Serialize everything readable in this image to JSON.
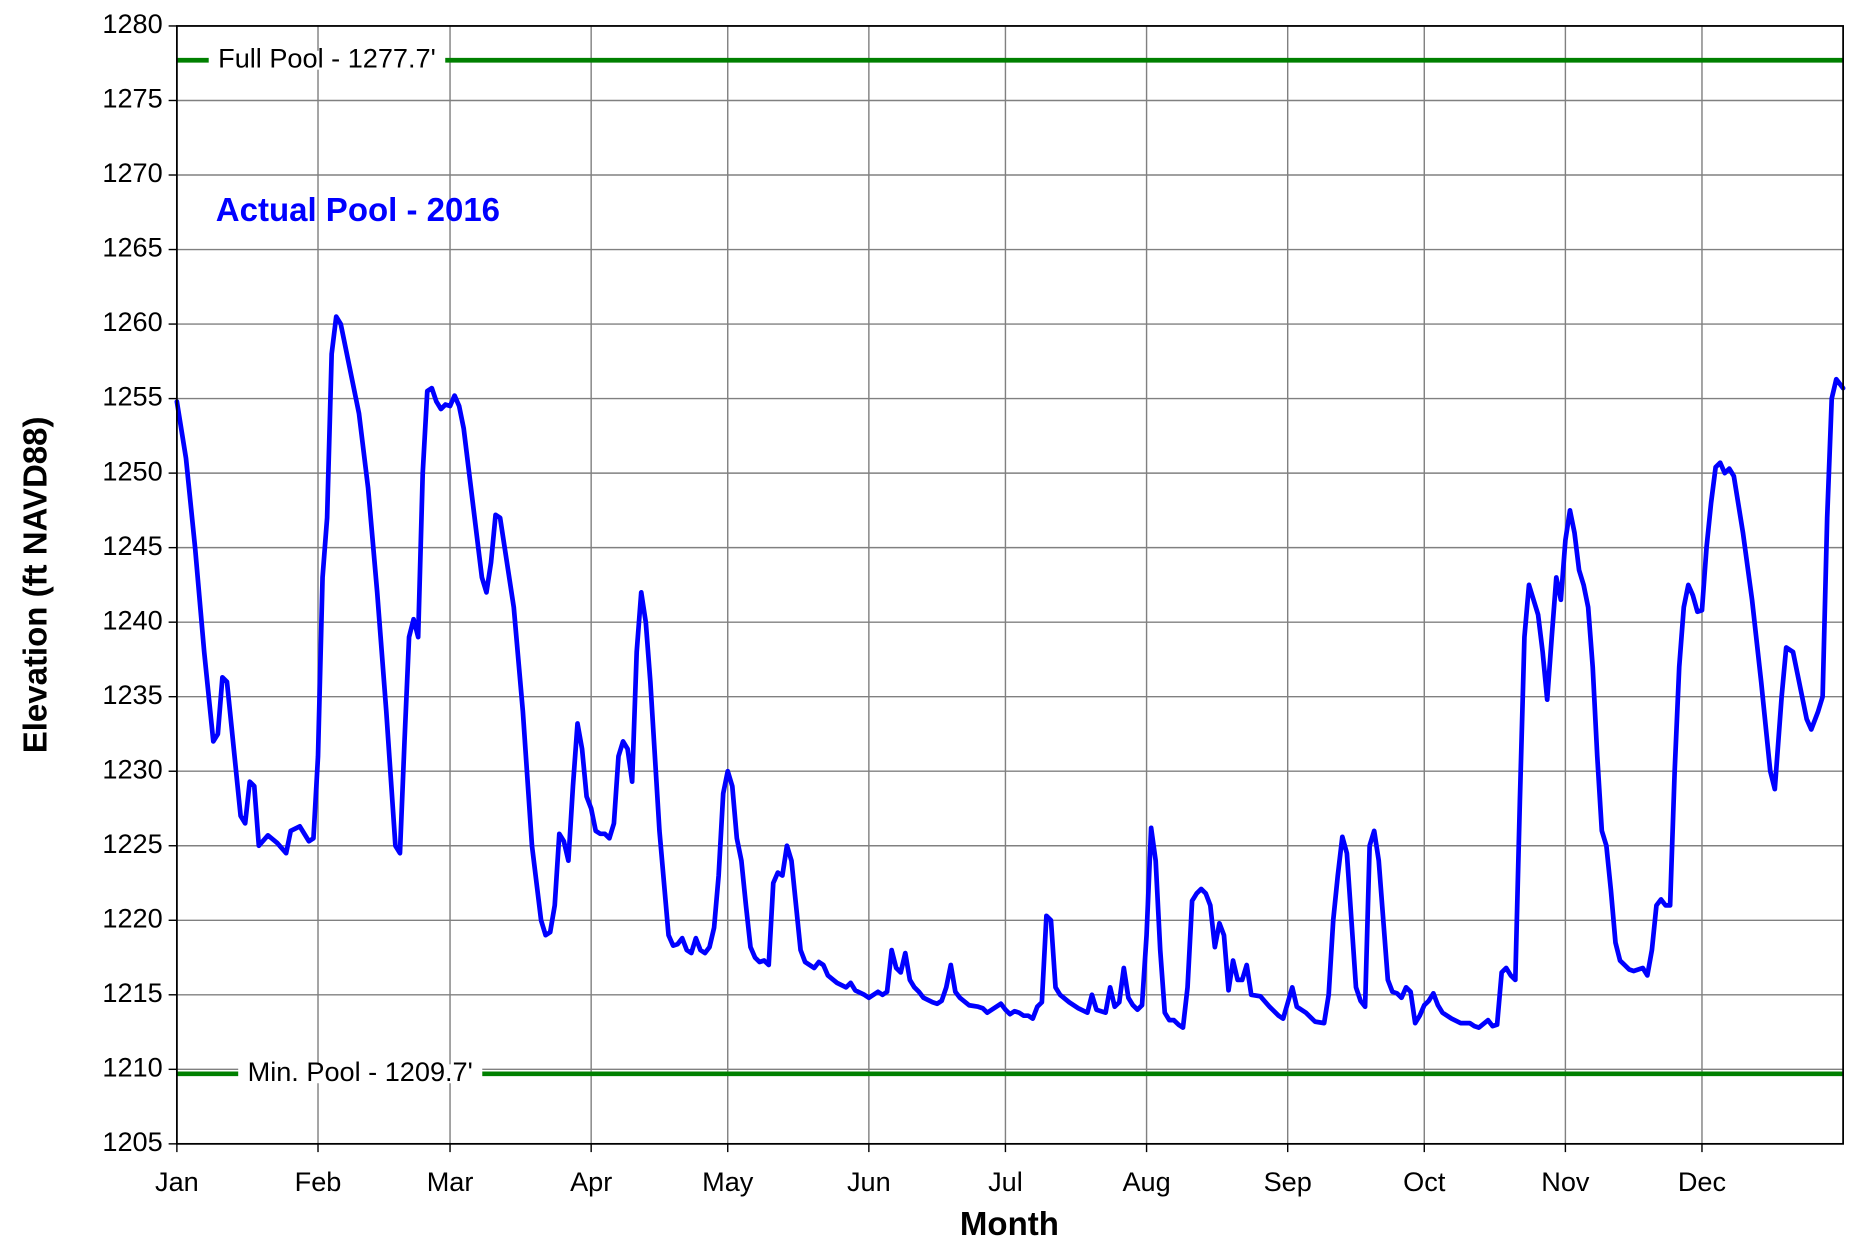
{
  "chart_data": {
    "type": "line",
    "xlabel": "Month",
    "ylabel": "Elevation (ft NAVD88)",
    "xlim": [
      0,
      366
    ],
    "xticks": [
      {
        "value": 0,
        "label": "Jan"
      },
      {
        "value": 31,
        "label": "Feb"
      },
      {
        "value": 60,
        "label": "Mar"
      },
      {
        "value": 91,
        "label": "Apr"
      },
      {
        "value": 121,
        "label": "May"
      },
      {
        "value": 152,
        "label": "Jun"
      },
      {
        "value": 182,
        "label": "Jul"
      },
      {
        "value": 213,
        "label": "Aug"
      },
      {
        "value": 244,
        "label": "Sep"
      },
      {
        "value": 274,
        "label": "Oct"
      },
      {
        "value": 305,
        "label": "Nov"
      },
      {
        "value": 335,
        "label": "Dec"
      }
    ],
    "ylim": [
      1205,
      1280
    ],
    "yticks": [
      1205,
      1210,
      1215,
      1220,
      1225,
      1230,
      1235,
      1240,
      1245,
      1250,
      1255,
      1260,
      1265,
      1270,
      1275,
      1280
    ],
    "grid": true,
    "reference_lines": [
      {
        "value": 1277.7,
        "label": "Full Pool - 1277.7'",
        "color": "#008000"
      },
      {
        "value": 1209.7,
        "label": "Min. Pool - 1209.7'",
        "color": "#008000"
      }
    ],
    "series": [
      {
        "name": "Actual Pool - 2016",
        "color": "#0000ff",
        "x": [
          0,
          2,
          4,
          6,
          8,
          9,
          10,
          11,
          12,
          14,
          15,
          16,
          17,
          18,
          20,
          22,
          24,
          25,
          27,
          29,
          30,
          31,
          32,
          33,
          34,
          35,
          36,
          38,
          40,
          42,
          44,
          46,
          48,
          49,
          50,
          51,
          52,
          53,
          54,
          55,
          56,
          57,
          58,
          59,
          60,
          61,
          62,
          63,
          65,
          67,
          68,
          69,
          70,
          71,
          72,
          74,
          76,
          78,
          80,
          81,
          82,
          83,
          84,
          85,
          86,
          87,
          88,
          89,
          90,
          91,
          92,
          93,
          94,
          95,
          96,
          97,
          98,
          99,
          100,
          101,
          102,
          103,
          104,
          106,
          108,
          109,
          110,
          111,
          112,
          113,
          114,
          115,
          116,
          117,
          118,
          119,
          120,
          121,
          122,
          123,
          124,
          125,
          126,
          127,
          128,
          129,
          130,
          131,
          132,
          133,
          134,
          135,
          136,
          137,
          138,
          140,
          141,
          142,
          143,
          145,
          147,
          148,
          149,
          151,
          152,
          153,
          154,
          155,
          156,
          157,
          158,
          159,
          160,
          161,
          162,
          163,
          164,
          166,
          167,
          168,
          169,
          170,
          171,
          172,
          174,
          176,
          177,
          178,
          179,
          181,
          182,
          183,
          184,
          185,
          186,
          187,
          188,
          189,
          190,
          191,
          192,
          193,
          194,
          196,
          198,
          200,
          201,
          202,
          204,
          205,
          206,
          207,
          208,
          209,
          210,
          211,
          212,
          213,
          214,
          215,
          216,
          217,
          218,
          219,
          220,
          221,
          222,
          223,
          224,
          225,
          226,
          227,
          228,
          229,
          230,
          231,
          232,
          233,
          234,
          235,
          236,
          238,
          240,
          242,
          243,
          245,
          246,
          248,
          250,
          252,
          253,
          254,
          255,
          256,
          257,
          258,
          259,
          260,
          261,
          262,
          263,
          264,
          265,
          266,
          267,
          268,
          269,
          270,
          271,
          272,
          273,
          274,
          275,
          276,
          277,
          278,
          280,
          282,
          284,
          285,
          286,
          288,
          289,
          290,
          291,
          292,
          293,
          294,
          295,
          296,
          297,
          298,
          299,
          300,
          301,
          302,
          303,
          304,
          305,
          306,
          307,
          308,
          309,
          310,
          311,
          312,
          313,
          314,
          315,
          316,
          317,
          318,
          319,
          320,
          322,
          323,
          324,
          325,
          326,
          327,
          328,
          329,
          330,
          331,
          332,
          333,
          334,
          335,
          336,
          337,
          338,
          339,
          340,
          341,
          342,
          344,
          346,
          348,
          350,
          351,
          352.5,
          353.5,
          355,
          356,
          358,
          359,
          360.5,
          361.5,
          362.5,
          363.5,
          364.5,
          366
        ],
        "values": [
          1254.8,
          1251,
          1245,
          1238,
          1232,
          1232.5,
          1236.3,
          1236,
          1233,
          1227,
          1226.5,
          1229.3,
          1229,
          1225,
          1225.7,
          1225.2,
          1224.5,
          1226,
          1226.3,
          1225.3,
          1225.5,
          1231,
          1243,
          1247,
          1258,
          1260.5,
          1260,
          1257,
          1254,
          1249,
          1242,
          1234,
          1225,
          1224.5,
          1232,
          1239,
          1240.2,
          1239,
          1250,
          1255.5,
          1255.7,
          1254.8,
          1254.3,
          1254.6,
          1254.5,
          1255.2,
          1254.5,
          1253,
          1248,
          1243,
          1242,
          1244,
          1247.2,
          1247,
          1245,
          1241,
          1234,
          1225,
          1220,
          1219,
          1219.2,
          1221,
          1225.8,
          1225.3,
          1224,
          1229,
          1233.2,
          1231.5,
          1228.3,
          1227.5,
          1226,
          1225.8,
          1225.8,
          1225.5,
          1226.5,
          1231,
          1232,
          1231.5,
          1229.3,
          1238,
          1242,
          1240,
          1236,
          1226,
          1219,
          1218.3,
          1218.4,
          1218.8,
          1218,
          1217.8,
          1218.8,
          1218,
          1217.8,
          1218.2,
          1219.5,
          1223,
          1228.5,
          1230,
          1229,
          1225.5,
          1224,
          1221,
          1218.2,
          1217.5,
          1217.2,
          1217.3,
          1217,
          1222.5,
          1223.2,
          1223,
          1225,
          1224,
          1221,
          1218,
          1217.2,
          1216.8,
          1217.2,
          1217,
          1216.3,
          1215.8,
          1215.5,
          1215.8,
          1215.3,
          1215,
          1214.8,
          1215,
          1215.2,
          1215,
          1215.2,
          1218,
          1216.8,
          1216.5,
          1217.8,
          1216,
          1215.5,
          1215.2,
          1214.8,
          1214.5,
          1214.4,
          1214.6,
          1215.5,
          1217,
          1215.2,
          1214.8,
          1214.3,
          1214.2,
          1214.1,
          1213.8,
          1214,
          1214.4,
          1214,
          1213.7,
          1213.9,
          1213.8,
          1213.6,
          1213.6,
          1213.4,
          1214.2,
          1214.5,
          1220.3,
          1220,
          1215.5,
          1215,
          1214.5,
          1214.1,
          1213.8,
          1215,
          1214,
          1213.8,
          1215.5,
          1214.2,
          1214.5,
          1216.8,
          1214.8,
          1214.3,
          1214,
          1214.3,
          1219,
          1226.2,
          1224,
          1218,
          1213.8,
          1213.3,
          1213.3,
          1213,
          1212.8,
          1215.5,
          1221.3,
          1221.8,
          1222.1,
          1221.8,
          1221,
          1218.2,
          1219.8,
          1219,
          1215.3,
          1217.3,
          1216,
          1216,
          1217,
          1215,
          1214.9,
          1214.2,
          1213.6,
          1213.4,
          1215.5,
          1214.2,
          1213.8,
          1213.2,
          1213.1,
          1215,
          1220,
          1223,
          1225.6,
          1224.5,
          1220,
          1215.5,
          1214.6,
          1214.2,
          1225,
          1226,
          1224,
          1220,
          1216,
          1215.2,
          1215.1,
          1214.8,
          1215.5,
          1215.2,
          1213.1,
          1213.6,
          1214.3,
          1214.6,
          1215.1,
          1214.3,
          1213.8,
          1213.4,
          1213.1,
          1213.1,
          1212.9,
          1212.8,
          1213.3,
          1212.9,
          1213,
          1216.5,
          1216.8,
          1216.3,
          1216,
          1228,
          1239,
          1242.5,
          1241.5,
          1240.5,
          1238,
          1234.8,
          1239,
          1243,
          1241.5,
          1245.5,
          1247.5,
          1246,
          1243.5,
          1242.5,
          1241,
          1237,
          1231,
          1226,
          1225,
          1222,
          1218.5,
          1217.3,
          1217,
          1216.7,
          1216.6,
          1216.8,
          1216.3,
          1218,
          1221,
          1221.4,
          1221,
          1221,
          1230,
          1237,
          1241,
          1242.5,
          1241.8,
          1240.7,
          1240.8,
          1245,
          1248,
          1250.4,
          1250.7,
          1250,
          1250.3,
          1249.8,
          1246,
          1241.5,
          1236,
          1230,
          1228.8,
          1235,
          1238.3,
          1238,
          1236.5,
          1233.5,
          1232.8,
          1234,
          1235,
          1247,
          1255,
          1256.3,
          1255.7
        ]
      }
    ]
  }
}
